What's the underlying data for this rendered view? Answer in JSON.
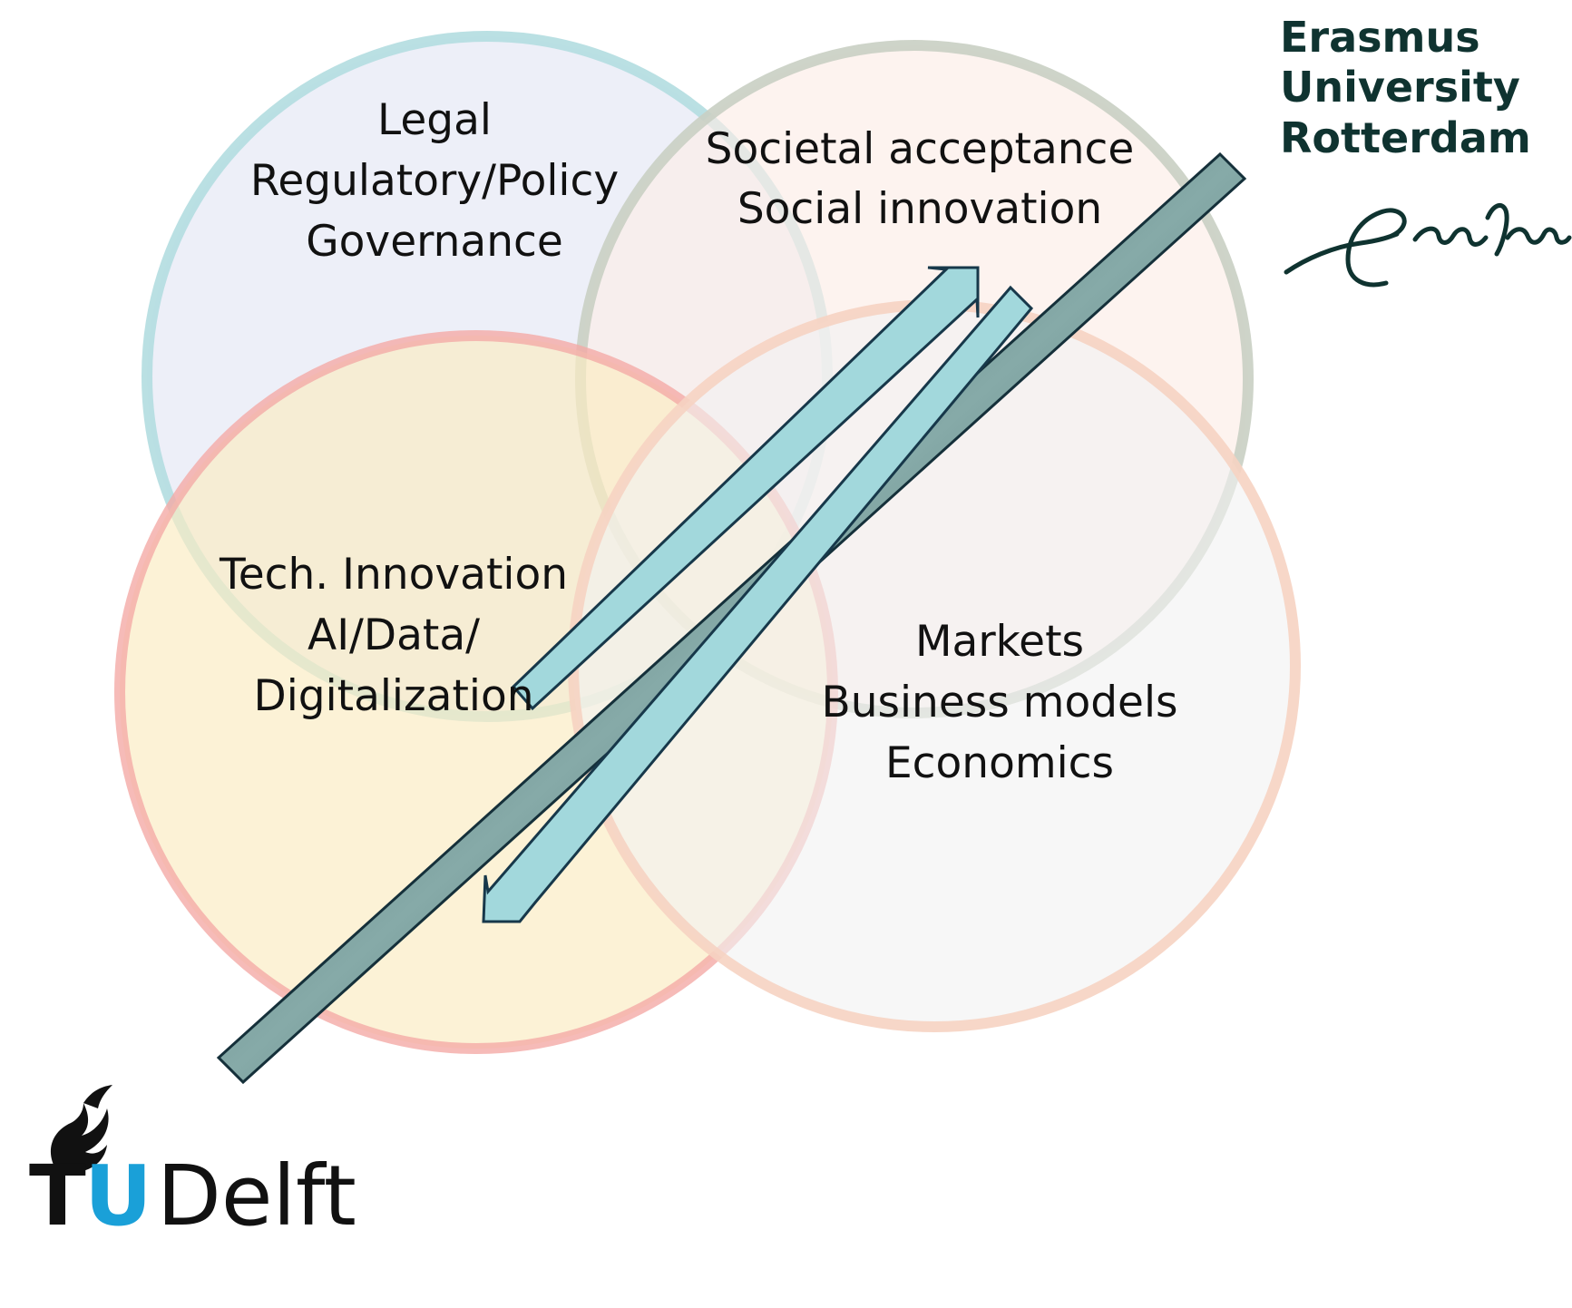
{
  "diagram": {
    "circles": [
      {
        "id": "legal",
        "fill": "#e8ebf6",
        "stroke": "#b3dde0"
      },
      {
        "id": "societal",
        "fill": "#fcede6",
        "stroke": "#c9cfc3"
      },
      {
        "id": "tech",
        "fill": "#fbecc2",
        "stroke": "#f4aaa6"
      },
      {
        "id": "markets",
        "fill": "#f1f1f1",
        "stroke": "#f6d3c2"
      }
    ],
    "legal_lines": [
      "Legal",
      "Regulatory/Policy",
      "Governance"
    ],
    "societal_lines": [
      "Societal acceptance",
      "Social innovation"
    ],
    "tech_lines": [
      "Tech. Innovation",
      "AI/Data/",
      "Digitalization"
    ],
    "markets_lines": [
      "Markets",
      "Business models",
      "Economics"
    ],
    "colors": {
      "bar_dark": "#1f3f45",
      "bar_light": "#86aaa8",
      "arrow_fill": "#a2d8dc",
      "arrow_stroke": "#17384a"
    }
  },
  "logos": {
    "erasmus": {
      "lines": [
        "Erasmus",
        "University",
        "Rotterdam"
      ],
      "color": "#0f3330"
    },
    "tudelft": {
      "t": "T",
      "u": "U",
      "delft": "Delft",
      "dark": "#111111",
      "blue": "#1aa0d8"
    }
  }
}
